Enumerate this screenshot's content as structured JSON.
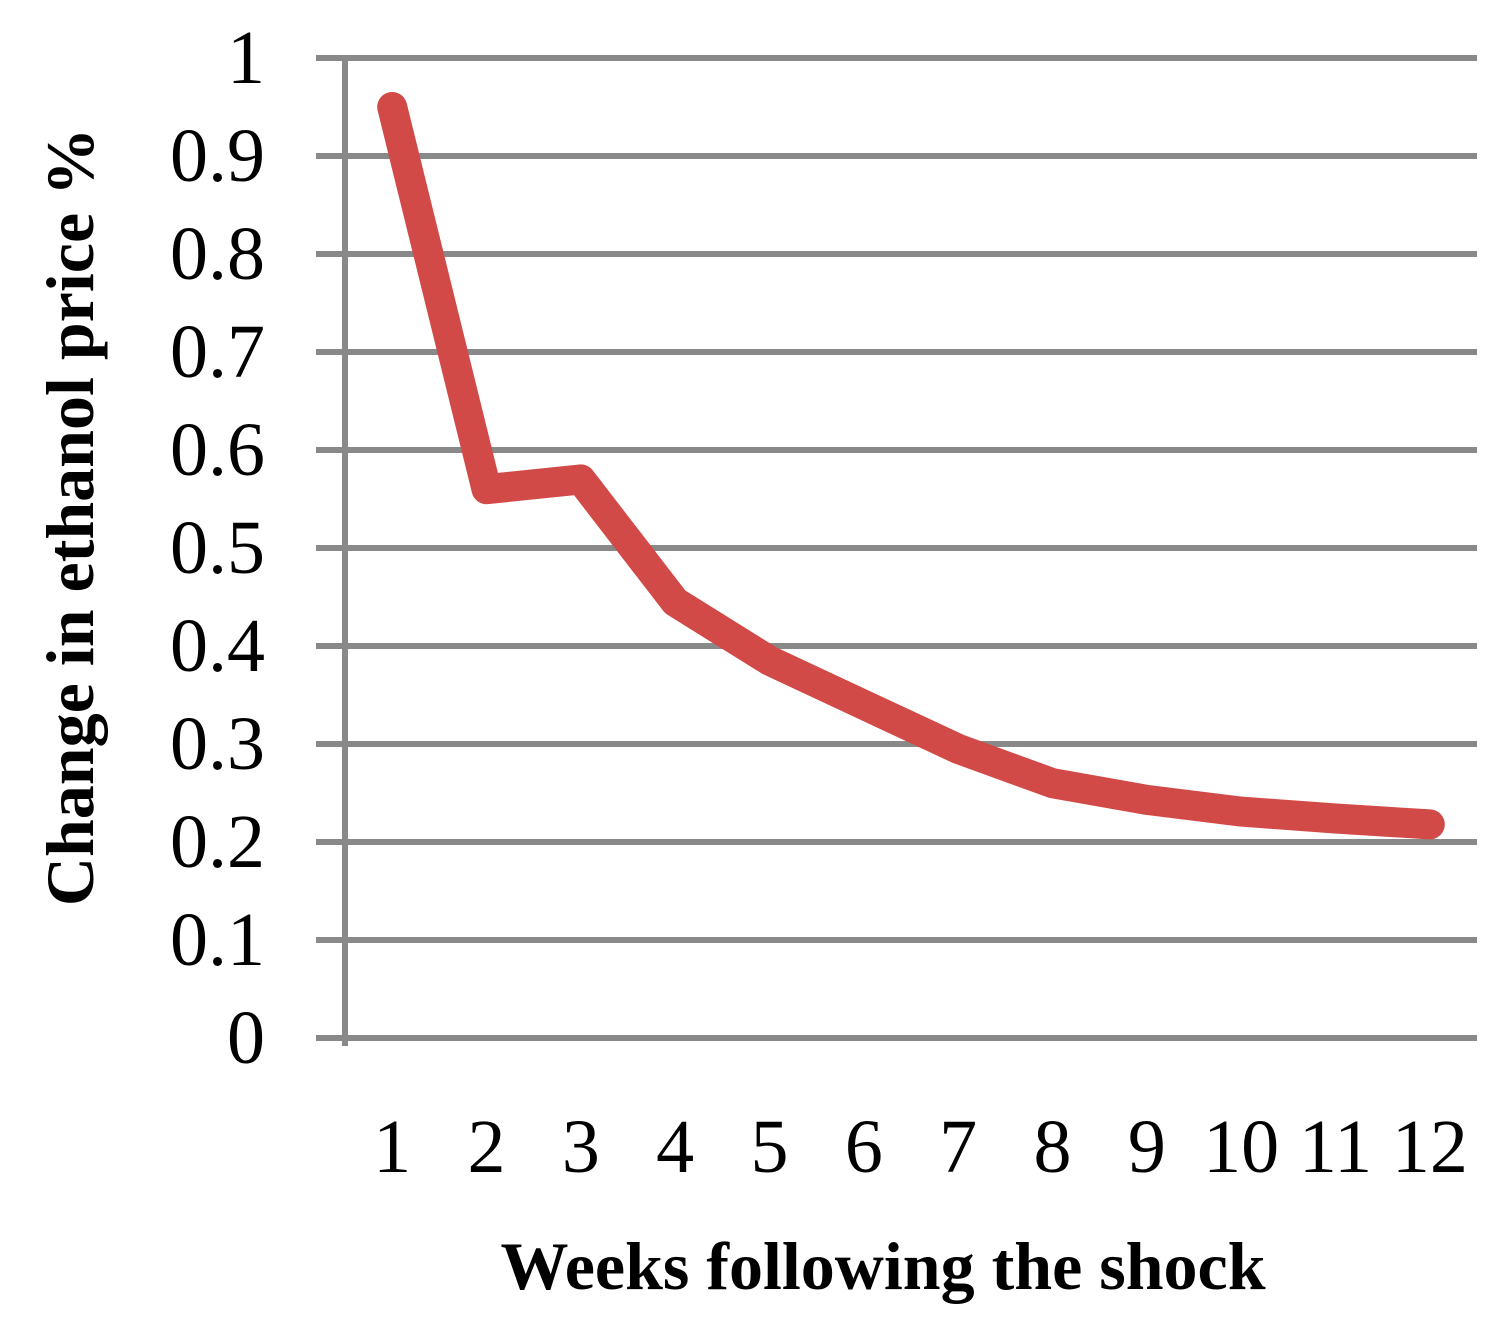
{
  "chart_data": {
    "type": "line",
    "title": "",
    "xlabel": "Weeks following the shock",
    "ylabel": "Change in ethanol price %",
    "x": [
      1,
      2,
      3,
      4,
      5,
      6,
      7,
      8,
      9,
      10,
      11,
      12
    ],
    "x_tick_labels": [
      "1",
      "2",
      "3",
      "4",
      "5",
      "6",
      "7",
      "8",
      "9",
      "10",
      "11",
      "12"
    ],
    "series": [
      {
        "name": "change-in-ethanol-price",
        "values": [
          0.95,
          0.56,
          0.57,
          0.445,
          0.385,
          0.34,
          0.295,
          0.26,
          0.243,
          0.231,
          0.224,
          0.218
        ],
        "color": "#d24a47"
      }
    ],
    "ylim": [
      0,
      1
    ],
    "y_ticks": [
      0,
      0.1,
      0.2,
      0.3,
      0.4,
      0.5,
      0.6,
      0.7,
      0.8,
      0.9,
      1
    ],
    "y_tick_labels": [
      "0",
      "0.1",
      "0.2",
      "0.3",
      "0.4",
      "0.5",
      "0.6",
      "0.7",
      "0.8",
      "0.9",
      "1"
    ],
    "grid": "horizontal",
    "legend": "none",
    "colors": {
      "grid_and_axis": "#898989",
      "text": "#000000",
      "background": "#ffffff"
    }
  }
}
